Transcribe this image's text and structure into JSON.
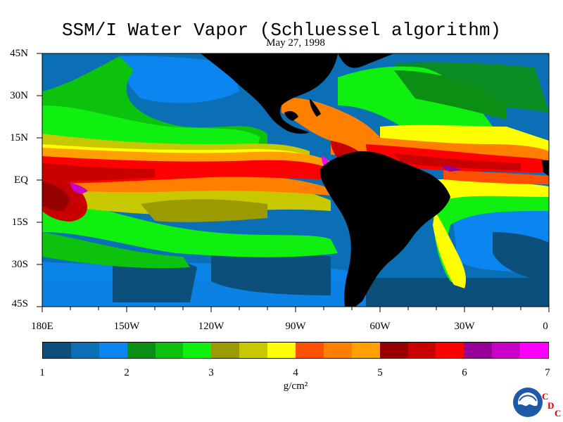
{
  "title": "SSM/I Water Vapor (Schluessel algorithm)",
  "date": "May 27, 1998",
  "lat_labels": [
    "45N",
    "30N",
    "15N",
    "EQ",
    "15S",
    "30S",
    "45S"
  ],
  "lon_labels": [
    "180E",
    "150W",
    "120W",
    "90W",
    "60W",
    "30W",
    "0"
  ],
  "colorbar": {
    "labels": [
      "1",
      "2",
      "3",
      "4",
      "5",
      "6",
      "7"
    ],
    "units": "g/cm²",
    "colors": [
      "#0b4f7a",
      "#0a6fb5",
      "#0b86f0",
      "#0a8f14",
      "#0cc20c",
      "#10f010",
      "#9b9b00",
      "#c8c800",
      "#ffff00",
      "#ff5000",
      "#ff8000",
      "#ffa000",
      "#960000",
      "#c80000",
      "#ff0000",
      "#960096",
      "#c800c8",
      "#ff00ff"
    ]
  },
  "logo": {
    "seal_text": "NOAA",
    "corner_letters": [
      "C",
      "D",
      "C"
    ]
  }
}
